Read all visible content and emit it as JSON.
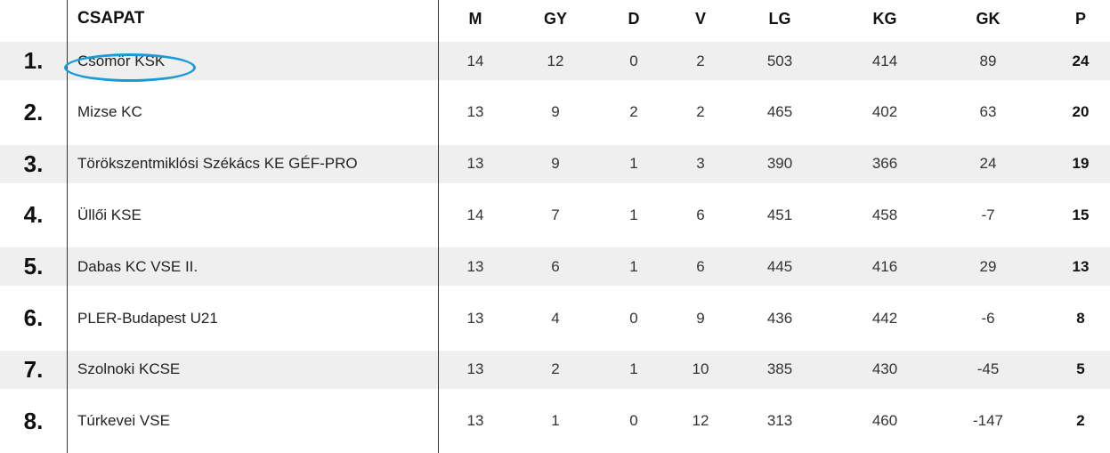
{
  "header": {
    "team": "CSAPAT",
    "m": "M",
    "gy": "GY",
    "d": "D",
    "v": "V",
    "lg": "LG",
    "kg": "KG",
    "gk": "GK",
    "p": "P"
  },
  "highlight_color": "#1a9bd7",
  "row_shade_color": "#efefef",
  "rows": [
    {
      "rank": "1.",
      "team": "Csömör KSK",
      "m": "14",
      "gy": "12",
      "d": "0",
      "v": "2",
      "lg": "503",
      "kg": "414",
      "gk": "89",
      "p": "24"
    },
    {
      "rank": "2.",
      "team": "Mizse KC",
      "m": "13",
      "gy": "9",
      "d": "2",
      "v": "2",
      "lg": "465",
      "kg": "402",
      "gk": "63",
      "p": "20"
    },
    {
      "rank": "3.",
      "team": "Törökszentmiklósi Székács KE GÉF-PRO",
      "m": "13",
      "gy": "9",
      "d": "1",
      "v": "3",
      "lg": "390",
      "kg": "366",
      "gk": "24",
      "p": "19"
    },
    {
      "rank": "4.",
      "team": "Üllői KSE",
      "m": "14",
      "gy": "7",
      "d": "1",
      "v": "6",
      "lg": "451",
      "kg": "458",
      "gk": "-7",
      "p": "15"
    },
    {
      "rank": "5.",
      "team": "Dabas KC VSE II.",
      "m": "13",
      "gy": "6",
      "d": "1",
      "v": "6",
      "lg": "445",
      "kg": "416",
      "gk": "29",
      "p": "13"
    },
    {
      "rank": "6.",
      "team": "PLER-Budapest U21",
      "m": "13",
      "gy": "4",
      "d": "0",
      "v": "9",
      "lg": "436",
      "kg": "442",
      "gk": "-6",
      "p": "8"
    },
    {
      "rank": "7.",
      "team": "Szolnoki KCSE",
      "m": "13",
      "gy": "2",
      "d": "1",
      "v": "10",
      "lg": "385",
      "kg": "430",
      "gk": "-45",
      "p": "5"
    },
    {
      "rank": "8.",
      "team": "Túrkevei VSE",
      "m": "13",
      "gy": "1",
      "d": "0",
      "v": "12",
      "lg": "313",
      "kg": "460",
      "gk": "-147",
      "p": "2"
    }
  ]
}
